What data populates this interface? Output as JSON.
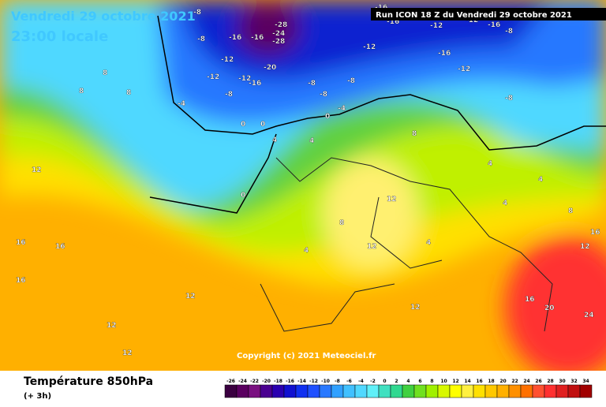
{
  "header": {
    "date": "Vendredi 29 octobre 2021",
    "time": "23:00 locale",
    "run": "Run ICON 18 Z du Vendredi 29 octobre 2021"
  },
  "copyright": "Copyright (c) 2021 Meteociel.fr",
  "footer": {
    "title": "Température 850hPa",
    "step": "(+ 3h)"
  },
  "scale": {
    "ticks": [
      -26,
      -24,
      -22,
      -20,
      -18,
      -16,
      -14,
      -12,
      -10,
      -8,
      -6,
      -4,
      -2,
      0,
      2,
      4,
      6,
      8,
      10,
      12,
      14,
      16,
      18,
      20,
      22,
      24,
      26,
      28,
      30,
      32,
      34
    ],
    "colors": [
      "#3a0040",
      "#5a0060",
      "#7a1080",
      "#4a0090",
      "#2a00b0",
      "#1010d0",
      "#1030f0",
      "#2050ff",
      "#2878ff",
      "#30a0ff",
      "#40c0ff",
      "#50d8ff",
      "#60f0f8",
      "#40e0c0",
      "#30d890",
      "#40d040",
      "#70e020",
      "#a0f000",
      "#d8f800",
      "#ffff00",
      "#fff040",
      "#ffe000",
      "#ffc800",
      "#ffb000",
      "#ff9000",
      "#ff7000",
      "#ff5030",
      "#ff3030",
      "#e02020",
      "#c01010",
      "#a00000"
    ]
  },
  "contours": [
    -8,
    -8,
    -16,
    -28,
    -24,
    -28,
    -16,
    -12,
    -12,
    -16,
    -8,
    -4,
    -12,
    -20,
    -16,
    -12,
    -8,
    -8,
    -12,
    -8,
    -16,
    -12,
    -16,
    -16,
    -12,
    -8,
    -8,
    -4,
    0,
    0,
    0,
    4,
    4,
    8,
    8,
    8,
    8,
    12,
    12,
    16,
    16,
    16,
    12,
    12,
    12,
    4,
    4,
    8,
    12,
    16,
    20,
    24,
    16,
    12,
    0,
    4,
    4,
    4,
    8,
    12
  ]
}
